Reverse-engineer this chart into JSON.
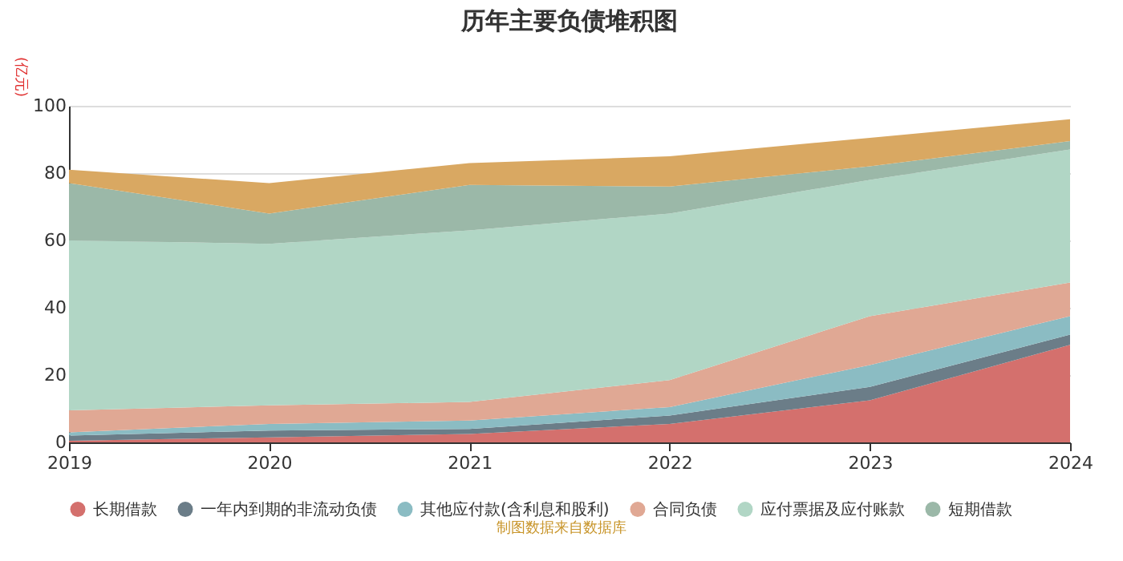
{
  "chart_data": {
    "type": "area",
    "title": "历年主要负债堆积图",
    "ylabel": "(亿元)",
    "stacked": true,
    "x": [
      2019,
      2020,
      2021,
      2022,
      2023,
      2024
    ],
    "xlim": [
      2019,
      2024
    ],
    "xticks": [
      2019,
      2020,
      2021,
      2022,
      2023,
      2024
    ],
    "ylim": [
      0,
      100
    ],
    "yticks": [
      0,
      20,
      40,
      60,
      80,
      100
    ],
    "grid": "y",
    "legend": "bottom",
    "annotations": [
      "制图数据来自数据库"
    ],
    "series": [
      {
        "name": "长期借款",
        "color": "#d4706d",
        "values": [
          0.5,
          1.5,
          2.5,
          5.5,
          12.5,
          29
        ]
      },
      {
        "name": "一年内到期的非流动负债",
        "color": "#6b7d88",
        "values": [
          1.5,
          2,
          1.5,
          2.5,
          4,
          3
        ]
      },
      {
        "name": "其他应付款(含利息和股利)",
        "color": "#8bbcc3",
        "values": [
          1,
          2,
          2.5,
          2.5,
          6.5,
          5.5
        ]
      },
      {
        "name": "合同负债",
        "color": "#e0a894",
        "values": [
          6.5,
          5.5,
          5.5,
          8,
          14.5,
          10
        ]
      },
      {
        "name": "应付票据及应付账款",
        "color": "#b1d6c5",
        "values": [
          50.5,
          48,
          51,
          49.5,
          40.5,
          39.5
        ]
      },
      {
        "name": "短期借款",
        "color": "#9bb8a8",
        "values": [
          17,
          9,
          13.5,
          8,
          4,
          2.5
        ]
      },
      {
        "color": "#d9a862",
        "values": [
          4,
          9,
          6.5,
          9,
          8.5,
          6.5
        ]
      }
    ]
  }
}
